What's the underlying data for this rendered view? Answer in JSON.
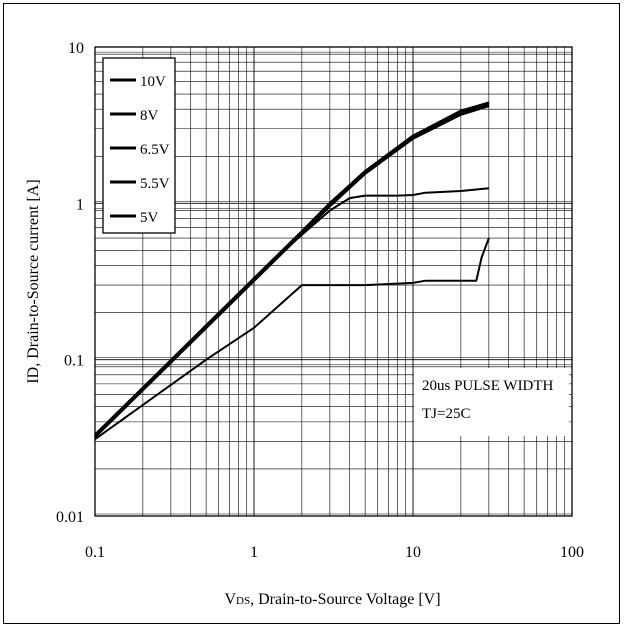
{
  "chart_data": {
    "type": "line",
    "title": "",
    "xlabel": "VDS, Drain-to-Source Voltage [V]",
    "xlabel_parts": {
      "prefix": "V",
      "sub": "DS",
      "rest": ", Drain-to-Source Voltage [V]"
    },
    "ylabel": "ID, Drain-to-Source current [A]",
    "x_scale": "log",
    "y_scale": "log",
    "xlim": [
      0.1,
      100
    ],
    "ylim": [
      0.01,
      10
    ],
    "x_ticks": [
      {
        "value": 0.1,
        "label": "0.1"
      },
      {
        "value": 1,
        "label": "1"
      },
      {
        "value": 10,
        "label": "10"
      },
      {
        "value": 100,
        "label": "100"
      }
    ],
    "y_ticks": [
      {
        "value": 0.01,
        "label": "0.01"
      },
      {
        "value": 0.1,
        "label": "0.1"
      },
      {
        "value": 1,
        "label": "1"
      },
      {
        "value": 10,
        "label": "10"
      }
    ],
    "grid": true,
    "legend_position": "top-left",
    "annotation": {
      "line1": "20us PULSE WIDTH",
      "line2": "TJ=25C"
    },
    "series": [
      {
        "name": "10V",
        "x": [
          0.1,
          0.2,
          0.5,
          1,
          2,
          3,
          5,
          10,
          20,
          30
        ],
        "y": [
          0.033,
          0.066,
          0.165,
          0.33,
          0.66,
          1.0,
          1.6,
          2.7,
          3.9,
          4.4
        ]
      },
      {
        "name": "8V",
        "x": [
          0.1,
          0.2,
          0.5,
          1,
          2,
          3,
          5,
          10,
          20,
          30
        ],
        "y": [
          0.033,
          0.066,
          0.165,
          0.33,
          0.66,
          1.0,
          1.6,
          2.7,
          3.85,
          4.3
        ]
      },
      {
        "name": "6.5V",
        "x": [
          0.1,
          0.2,
          0.5,
          1,
          2,
          3,
          5,
          10,
          20,
          30
        ],
        "y": [
          0.032,
          0.064,
          0.16,
          0.32,
          0.64,
          0.96,
          1.55,
          2.6,
          3.7,
          4.2
        ]
      },
      {
        "name": "5.5V",
        "x": [
          0.1,
          0.5,
          1,
          2,
          3,
          4,
          5,
          8,
          10,
          12,
          20,
          30
        ],
        "y": [
          0.033,
          0.165,
          0.33,
          0.63,
          0.9,
          1.08,
          1.12,
          1.12,
          1.13,
          1.17,
          1.2,
          1.25
        ]
      },
      {
        "name": "5V",
        "x": [
          0.1,
          0.5,
          1,
          2,
          3,
          5,
          10,
          12,
          20,
          25,
          27,
          30
        ],
        "y": [
          0.031,
          0.1,
          0.16,
          0.3,
          0.3,
          0.3,
          0.31,
          0.32,
          0.32,
          0.32,
          0.45,
          0.6
        ]
      }
    ]
  }
}
